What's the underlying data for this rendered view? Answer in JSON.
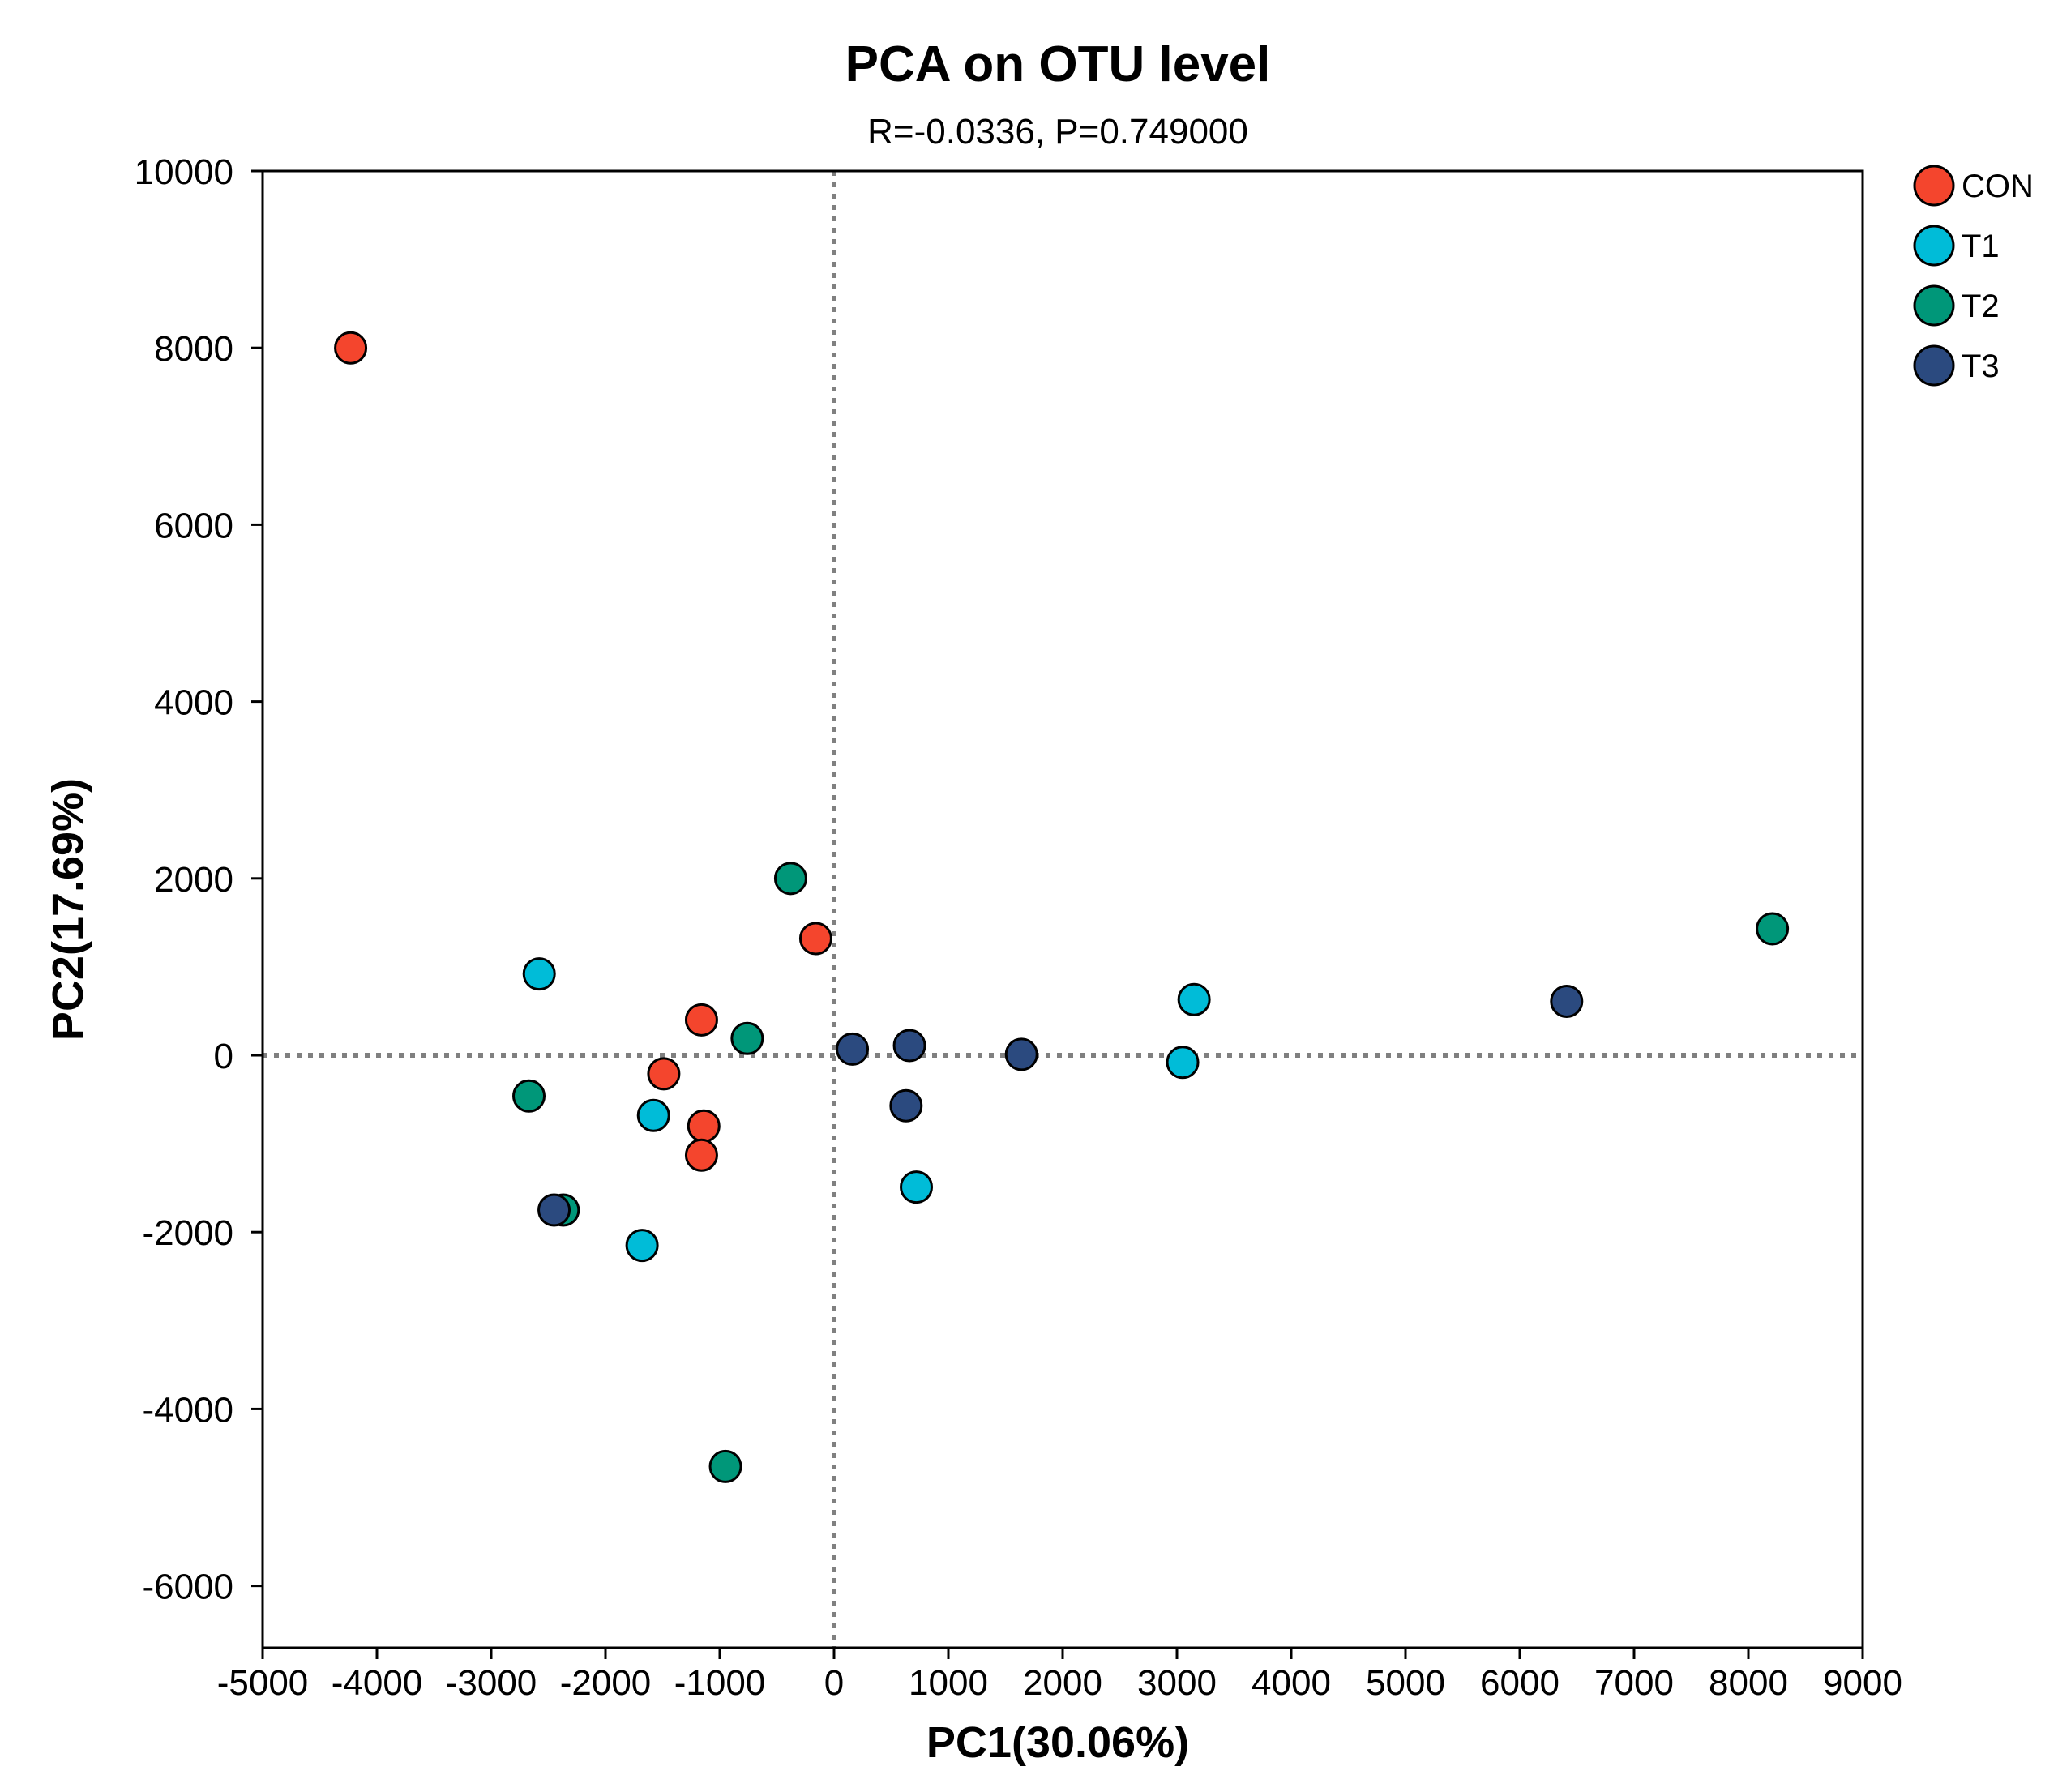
{
  "chart_data": {
    "type": "scatter",
    "title": "PCA on OTU level",
    "subtitle": "R=-0.0336, P=0.749000",
    "xlabel": "PC1(30.06%)",
    "ylabel": "PC2(17.69%)",
    "xlim": [
      -5000,
      9000
    ],
    "ylim": [
      -6700,
      10000
    ],
    "xticks": [
      -5000,
      -4000,
      -3000,
      -2000,
      -1000,
      0,
      1000,
      2000,
      3000,
      4000,
      5000,
      6000,
      7000,
      8000,
      9000
    ],
    "xtick_labels": [
      "-5000",
      "-4000",
      "-3000",
      "-2000",
      "-1000",
      "0",
      "1000",
      "2000",
      "3000",
      "4000",
      "5000",
      "6000",
      "7000",
      "8000",
      "9000"
    ],
    "yticks": [
      -6000,
      -4000,
      -2000,
      0,
      2000,
      4000,
      6000,
      8000,
      10000
    ],
    "ytick_labels": [
      "-6000",
      "-4000",
      "-2000",
      "0",
      "2000",
      "4000",
      "6000",
      "8000",
      "10000"
    ],
    "reference_lines": {
      "x": 0,
      "y": 0
    },
    "legend_position": "top-right outside",
    "series": [
      {
        "name": "CON",
        "color": "#F4452D",
        "points": [
          {
            "x": -4230,
            "y": 8000
          },
          {
            "x": -160,
            "y": 1320
          },
          {
            "x": -1160,
            "y": 400
          },
          {
            "x": -1490,
            "y": -210
          },
          {
            "x": -1140,
            "y": -800
          },
          {
            "x": -1160,
            "y": -1130
          }
        ]
      },
      {
        "name": "T1",
        "color": "#00BCD8",
        "points": [
          {
            "x": -2580,
            "y": 920
          },
          {
            "x": -1580,
            "y": -680
          },
          {
            "x": -1680,
            "y": -2150
          },
          {
            "x": 720,
            "y": -1490
          },
          {
            "x": 3050,
            "y": -80
          },
          {
            "x": 3150,
            "y": 630
          }
        ]
      },
      {
        "name": "T2",
        "color": "#009779",
        "points": [
          {
            "x": -380,
            "y": 2000
          },
          {
            "x": -760,
            "y": 190
          },
          {
            "x": -2670,
            "y": -460
          },
          {
            "x": -2370,
            "y": -1750
          },
          {
            "x": -950,
            "y": -4650
          },
          {
            "x": 8210,
            "y": 1430
          }
        ]
      },
      {
        "name": "T3",
        "color": "#2B4A7F",
        "points": [
          {
            "x": 160,
            "y": 70
          },
          {
            "x": 660,
            "y": 110
          },
          {
            "x": 630,
            "y": -570
          },
          {
            "x": 1640,
            "y": 10
          },
          {
            "x": -2450,
            "y": -1750
          },
          {
            "x": 6410,
            "y": 610
          }
        ]
      }
    ]
  }
}
